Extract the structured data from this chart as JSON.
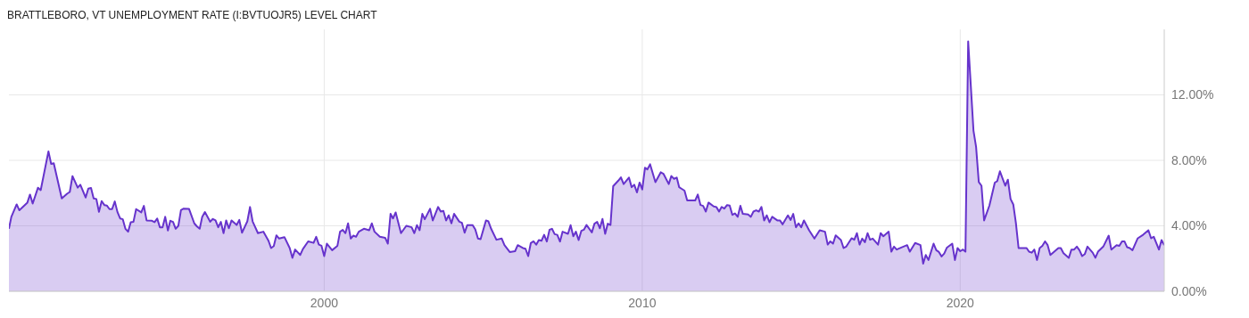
{
  "chart_data": {
    "type": "area",
    "title": "BRATTLEBORO, VT UNEMPLOYMENT RATE (I:BVTUOJR5) LEVEL CHART",
    "color": "#6633cc",
    "x": [
      "1990-02",
      "1990-03",
      "1990-05",
      "1990-06",
      "1990-09",
      "1990-10",
      "1990-11",
      "1991-01",
      "1991-02",
      "1991-05",
      "1991-06",
      "1991-07",
      "1991-10",
      "1991-12",
      "1992-01",
      "1992-02",
      "1992-04",
      "1992-05",
      "1992-07",
      "1992-08",
      "1992-09",
      "1992-10",
      "1992-11",
      "1992-12",
      "1993-01",
      "1993-02",
      "1993-03",
      "1993-04",
      "1993-05",
      "1993-06",
      "1993-07",
      "1993-08",
      "1993-09",
      "1993-10",
      "1993-11",
      "1993-12",
      "1994-01",
      "1994-02",
      "1994-04",
      "1994-05",
      "1994-06",
      "1994-08",
      "1994-09",
      "1994-10",
      "1994-11",
      "1994-12",
      "1995-01",
      "1995-02",
      "1995-03",
      "1995-04",
      "1995-05",
      "1995-06",
      "1995-07",
      "1995-08",
      "1995-10",
      "1995-12",
      "1996-01",
      "1996-02",
      "1996-03",
      "1996-04",
      "1996-06",
      "1996-07",
      "1996-08",
      "1996-09",
      "1996-10",
      "1996-11",
      "1996-12",
      "1997-01",
      "1997-02",
      "1997-04",
      "1997-05",
      "1997-06",
      "1997-08",
      "1997-09",
      "1997-10",
      "1997-12",
      "1998-02",
      "1998-04",
      "1998-05",
      "1998-06",
      "1998-07",
      "1998-08",
      "1998-10",
      "1998-12",
      "1999-01",
      "1999-02",
      "1999-04",
      "1999-05",
      "1999-07",
      "1999-09",
      "1999-10",
      "1999-11",
      "1999-12",
      "2000-01",
      "2000-02",
      "2000-04",
      "2000-06",
      "2000-07",
      "2000-08",
      "2000-09",
      "2000-10",
      "2000-11",
      "2000-12",
      "2001-01",
      "2001-02",
      "2001-04",
      "2001-06",
      "2001-07",
      "2001-08",
      "2001-10",
      "2001-12",
      "2002-01",
      "2002-02",
      "2002-03",
      "2002-04",
      "2002-06",
      "2002-08",
      "2002-10",
      "2002-11",
      "2002-12",
      "2003-01",
      "2003-02",
      "2003-03",
      "2003-05",
      "2003-06",
      "2003-08",
      "2003-09",
      "2003-10",
      "2003-11",
      "2003-12",
      "2004-01",
      "2004-02",
      "2004-04",
      "2004-05",
      "2004-06",
      "2004-07",
      "2004-09",
      "2004-10",
      "2004-11",
      "2004-12",
      "2005-02",
      "2005-03",
      "2005-04",
      "2005-06",
      "2005-08",
      "2005-09",
      "2005-11",
      "2006-01",
      "2006-02",
      "2006-04",
      "2006-05",
      "2006-06",
      "2006-07",
      "2006-08",
      "2006-09",
      "2006-10",
      "2006-11",
      "2006-12",
      "2007-01",
      "2007-02",
      "2007-03",
      "2007-04",
      "2007-05",
      "2007-06",
      "2007-07",
      "2007-09",
      "2007-10",
      "2007-11",
      "2007-12",
      "2008-01",
      "2008-02",
      "2008-03",
      "2008-04",
      "2008-06",
      "2008-07",
      "2008-08",
      "2008-09",
      "2008-10",
      "2008-11",
      "2008-12",
      "2009-01",
      "2009-02",
      "2009-04",
      "2009-05",
      "2009-06",
      "2009-08",
      "2009-09",
      "2009-10",
      "2009-11",
      "2009-12",
      "2010-01",
      "2010-02",
      "2010-03",
      "2010-04",
      "2010-06",
      "2010-08",
      "2010-09",
      "2010-11",
      "2010-12",
      "2011-01",
      "2011-02",
      "2011-03",
      "2011-05",
      "2011-06",
      "2011-09",
      "2011-10",
      "2011-11",
      "2011-12",
      "2012-01",
      "2012-02",
      "2012-04",
      "2012-05",
      "2012-06",
      "2012-07",
      "2012-08",
      "2012-09",
      "2012-10",
      "2012-11",
      "2012-12",
      "2013-01",
      "2013-02",
      "2013-03",
      "2013-05",
      "2013-06",
      "2013-07",
      "2013-08",
      "2013-09",
      "2013-10",
      "2013-11",
      "2013-12",
      "2014-01",
      "2014-02",
      "2014-04",
      "2014-05",
      "2014-06",
      "2014-08",
      "2014-09",
      "2014-10",
      "2014-11",
      "2014-12",
      "2015-01",
      "2015-02",
      "2015-04",
      "2015-06",
      "2015-08",
      "2015-10",
      "2015-11",
      "2015-12",
      "2016-01",
      "2016-02",
      "2016-04",
      "2016-05",
      "2016-06",
      "2016-08",
      "2016-09",
      "2016-10",
      "2016-11",
      "2016-12",
      "2017-01",
      "2017-02",
      "2017-03",
      "2017-04",
      "2017-06",
      "2017-07",
      "2017-08",
      "2017-10",
      "2017-11",
      "2017-12",
      "2018-01",
      "2018-03",
      "2018-05",
      "2018-06",
      "2018-08",
      "2018-10",
      "2018-11",
      "2018-12",
      "2019-01",
      "2019-03",
      "2019-04",
      "2019-05",
      "2019-06",
      "2019-07",
      "2019-08",
      "2019-10",
      "2019-11",
      "2019-12",
      "2020-01",
      "2020-02",
      "2020-03",
      "2020-04",
      "2020-06",
      "2020-07",
      "2020-08",
      "2020-09",
      "2020-10",
      "2020-12",
      "2021-02",
      "2021-03",
      "2021-04",
      "2021-06",
      "2021-07",
      "2021-08",
      "2021-09",
      "2021-10",
      "2021-11",
      "2022-02",
      "2022-03",
      "2022-04",
      "2022-05",
      "2022-06",
      "2022-07",
      "2022-08",
      "2022-09",
      "2022-10",
      "2022-11",
      "2022-12",
      "2023-02",
      "2023-03",
      "2023-04",
      "2023-06",
      "2023-07",
      "2023-08",
      "2023-09",
      "2023-10",
      "2023-11",
      "2023-12",
      "2024-01",
      "2024-03",
      "2024-04",
      "2024-05",
      "2024-07",
      "2024-09",
      "2024-10",
      "2024-12",
      "2025-01",
      "2025-02",
      "2025-03",
      "2025-04",
      "2025-05",
      "2025-06",
      "2025-08",
      "2025-10",
      "2025-12",
      "2026-01",
      "2026-02",
      "2026-04",
      "2026-05",
      "2026-06"
    ],
    "values": [
      3.82,
      4.55,
      5.31,
      4.95,
      5.42,
      5.91,
      5.36,
      6.33,
      6.18,
      8.55,
      7.78,
      7.82,
      5.67,
      5.96,
      6.07,
      7.04,
      6.33,
      6.51,
      5.73,
      6.27,
      6.31,
      5.67,
      5.64,
      4.85,
      5.51,
      5.27,
      5.24,
      5.02,
      5.02,
      5.49,
      4.85,
      4.45,
      4.4,
      3.82,
      3.64,
      4.22,
      4.24,
      5.02,
      4.82,
      5.22,
      4.33,
      4.31,
      4.22,
      4.44,
      3.91,
      3.91,
      4.55,
      3.71,
      4.31,
      4.24,
      3.82,
      4.0,
      4.96,
      5.05,
      5.04,
      4.15,
      3.96,
      3.82,
      4.55,
      4.84,
      4.25,
      4.42,
      4.33,
      3.91,
      4.24,
      3.55,
      4.33,
      3.85,
      4.33,
      4.05,
      4.36,
      3.58,
      4.27,
      5.15,
      4.27,
      3.55,
      3.64,
      3.09,
      2.64,
      2.76,
      3.42,
      3.22,
      3.31,
      2.64,
      2.04,
      2.55,
      2.22,
      2.58,
      3.05,
      2.96,
      3.33,
      2.85,
      2.78,
      2.15,
      2.91,
      2.51,
      2.78,
      3.64,
      3.75,
      3.55,
      4.15,
      3.22,
      3.4,
      3.33,
      3.64,
      3.82,
      3.73,
      4.15,
      3.64,
      3.33,
      3.27,
      2.91,
      4.73,
      4.45,
      4.82,
      3.55,
      4.0,
      3.91,
      3.55,
      4.04,
      3.73,
      4.73,
      4.4,
      5.04,
      4.33,
      5.15,
      4.87,
      4.91,
      4.33,
      4.64,
      4.15,
      4.73,
      4.25,
      4.18,
      3.58,
      4.04,
      4.04,
      3.78,
      3.22,
      3.18,
      4.33,
      4.27,
      3.82,
      3.15,
      3.22,
      2.82,
      2.4,
      2.45,
      2.82,
      2.64,
      2.6,
      2.15,
      2.95,
      3.05,
      2.85,
      3.13,
      3.09,
      3.45,
      3.04,
      3.76,
      3.82,
      3.49,
      3.45,
      3.04,
      3.64,
      3.51,
      4.04,
      3.36,
      3.64,
      3.13,
      3.69,
      3.76,
      4.05,
      3.6,
      4.13,
      4.24,
      3.85,
      4.42,
      3.51,
      4.13,
      4.05,
      6.42,
      6.76,
      6.96,
      6.55,
      6.95,
      6.36,
      6.51,
      6.04,
      6.64,
      6.22,
      7.55,
      7.45,
      7.76,
      6.67,
      7.27,
      7.18,
      6.55,
      7.04,
      6.87,
      6.95,
      6.36,
      6.15,
      5.55,
      5.55,
      5.91,
      5.27,
      5.22,
      4.87,
      5.42,
      5.18,
      5.15,
      4.87,
      5.15,
      5.05,
      5.27,
      5.24,
      4.67,
      4.76,
      4.55,
      5.22,
      4.73,
      4.69,
      4.55,
      4.87,
      4.95,
      4.87,
      5.15,
      4.33,
      4.64,
      4.22,
      4.55,
      4.33,
      4.33,
      4.09,
      4.64,
      4.36,
      4.73,
      3.91,
      4.15,
      3.91,
      4.33,
      3.73,
      3.22,
      3.73,
      3.64,
      2.85,
      3.05,
      2.91,
      3.42,
      3.13,
      2.64,
      2.73,
      3.24,
      3.15,
      3.55,
      2.85,
      3.22,
      3.0,
      3.55,
      3.15,
      3.22,
      2.85,
      3.55,
      3.36,
      3.64,
      2.42,
      2.73,
      2.55,
      2.69,
      2.82,
      2.42,
      2.95,
      2.82,
      1.69,
      2.22,
      1.91,
      2.91,
      2.51,
      2.4,
      2.13,
      2.31,
      2.67,
      2.91,
      1.91,
      2.64,
      2.45,
      2.55,
      2.42,
      15.27,
      9.82,
      8.82,
      6.67,
      6.45,
      4.33,
      5.24,
      6.64,
      6.73,
      7.33,
      6.45,
      6.82,
      5.64,
      5.31,
      4.18,
      2.64,
      2.64,
      2.42,
      2.36,
      2.55,
      1.91,
      2.64,
      2.78,
      3.05,
      2.82,
      2.22,
      2.36,
      2.64,
      2.64,
      2.33,
      2.04,
      2.55,
      2.55,
      2.73,
      2.51,
      2.15,
      2.27,
      2.73,
      2.36,
      2.05,
      2.42,
      2.73,
      3.4,
      2.55,
      2.82,
      2.78,
      3.05,
      3.05,
      2.69,
      2.64,
      2.51,
      3.24,
      3.45,
      3.73,
      3.24,
      3.33,
      2.55,
      3.13,
      2.82
    ],
    "xlim": [
      "1990-02",
      "2026-06"
    ],
    "xticks": [
      "2000",
      "2010",
      "2020"
    ],
    "ylim": [
      0,
      16
    ],
    "yticks": [
      {
        "value": 0,
        "label": "0.00%"
      },
      {
        "value": 4,
        "label": "4.00%"
      },
      {
        "value": 8,
        "label": "8.00%"
      },
      {
        "value": 12,
        "label": "12.00%"
      }
    ],
    "grid": true
  }
}
